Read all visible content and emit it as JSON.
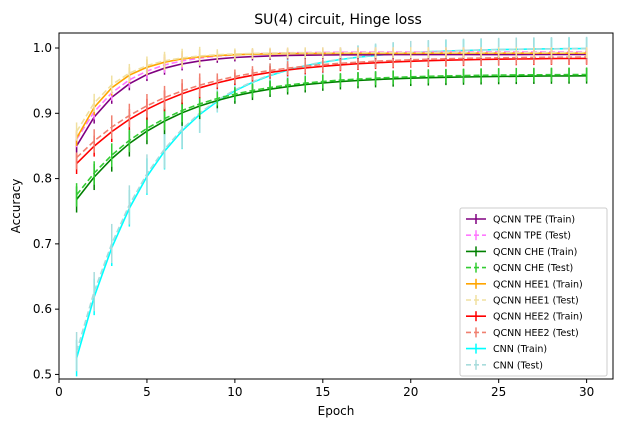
{
  "chart_data": {
    "type": "line",
    "title": "SU(4) circuit, Hinge loss",
    "xlabel": "Epoch",
    "ylabel": "Accuracy",
    "xlim": [
      0,
      31.5
    ],
    "ylim": [
      0.493,
      1.023
    ],
    "xticks": [
      0,
      5,
      10,
      15,
      20,
      25,
      30
    ],
    "yticks": [
      0.5,
      0.6,
      0.7,
      0.8,
      0.9,
      1.0
    ],
    "xtick_labels": [
      "0",
      "5",
      "10",
      "15",
      "20",
      "25",
      "30"
    ],
    "ytick_labels": [
      "0.5",
      "0.6",
      "0.7",
      "0.8",
      "0.9",
      "1.0"
    ],
    "legend_position": "lower-right",
    "grid": false,
    "series": [
      {
        "name": "QCNN TPE (Train)",
        "color": "#800080",
        "dashed": false,
        "start": 0.85,
        "end": 0.99,
        "rate": 0.38,
        "err": 0.01
      },
      {
        "name": "QCNN TPE (Test)",
        "color": "#ff77ff",
        "dashed": true,
        "start": 0.86,
        "end": 0.994,
        "rate": 0.38,
        "err": 0.012
      },
      {
        "name": "QCNN CHE (Train)",
        "color": "#008000",
        "dashed": false,
        "start": 0.768,
        "end": 0.958,
        "rate": 0.2,
        "err": 0.02
      },
      {
        "name": "QCNN CHE (Test)",
        "color": "#33cc33",
        "dashed": true,
        "start": 0.775,
        "end": 0.96,
        "rate": 0.2,
        "err": 0.018
      },
      {
        "name": "QCNN HEE1 (Train)",
        "color": "#ffa500",
        "dashed": false,
        "start": 0.862,
        "end": 0.992,
        "rate": 0.45,
        "err": 0.012
      },
      {
        "name": "QCNN HEE1 (Test)",
        "color": "#f0e0a0",
        "dashed": true,
        "start": 0.872,
        "end": 0.993,
        "rate": 0.45,
        "err": 0.014
      },
      {
        "name": "QCNN HEE2 (Train)",
        "color": "#ff0000",
        "dashed": false,
        "start": 0.823,
        "end": 0.985,
        "rate": 0.18,
        "err": 0.016
      },
      {
        "name": "QCNN HEE2 (Test)",
        "color": "#f08070",
        "dashed": true,
        "start": 0.832,
        "end": 0.987,
        "rate": 0.18,
        "err": 0.018
      },
      {
        "name": "CNN (Train)",
        "color": "#00ffff",
        "dashed": false,
        "start": 0.525,
        "end": 1.0,
        "rate": 0.22,
        "err": 0.028
      },
      {
        "name": "CNN (Test)",
        "color": "#a8dcdc",
        "dashed": true,
        "start": 0.535,
        "end": 1.0,
        "rate": 0.22,
        "err": 0.03
      }
    ]
  }
}
